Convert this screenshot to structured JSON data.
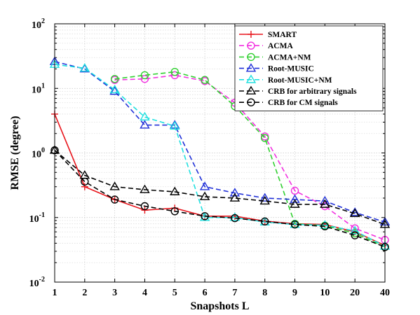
{
  "chart_data": {
    "type": "line",
    "title": "",
    "xlabel": "Snapshots L",
    "ylabel": "RMSE (degree)",
    "yscale": "log",
    "ylim": [
      0.01,
      100
    ],
    "grid": true,
    "legend_position": "top-right",
    "categories": [
      "1",
      "2",
      "3",
      "4",
      "5",
      "6",
      "7",
      "8",
      "9",
      "10",
      "20",
      "40"
    ],
    "y_ticks": [
      {
        "base": "10",
        "exp": "-2",
        "value": 0.01
      },
      {
        "base": "10",
        "exp": "-1",
        "value": 0.1
      },
      {
        "base": "10",
        "exp": "0",
        "value": 1
      },
      {
        "base": "10",
        "exp": "1",
        "value": 10
      },
      {
        "base": "10",
        "exp": "2",
        "value": 100
      }
    ],
    "series": [
      {
        "name": "SMART",
        "color": "#e8141b",
        "dash": "solid",
        "marker": "plus",
        "values": [
          4.0,
          0.3,
          0.19,
          0.13,
          0.14,
          0.105,
          0.105,
          0.088,
          0.08,
          0.078,
          0.06,
          0.037
        ]
      },
      {
        "name": "ACMA",
        "color": "#f230e0",
        "dash": "dashed",
        "marker": "circle",
        "values": [
          null,
          null,
          13.5,
          14.0,
          16.0,
          13.0,
          6.0,
          1.8,
          0.26,
          0.15,
          0.068,
          0.045
        ]
      },
      {
        "name": "ACMA+NM",
        "color": "#30d030",
        "dash": "dashed",
        "marker": "circle",
        "values": [
          null,
          null,
          14.0,
          16.0,
          18.0,
          13.5,
          5.3,
          1.7,
          0.08,
          0.075,
          0.057,
          0.035
        ]
      },
      {
        "name": "Root-MUSIC",
        "color": "#2030d8",
        "dash": "dashed",
        "marker": "triangle",
        "values": [
          26.0,
          20.0,
          9.0,
          2.7,
          2.7,
          0.3,
          0.24,
          0.2,
          0.19,
          0.18,
          0.12,
          0.085
        ]
      },
      {
        "name": "Root-MUSIC+NM",
        "color": "#20e0e0",
        "dash": "dashed",
        "marker": "triangle",
        "values": [
          23.5,
          20.5,
          9.5,
          3.6,
          2.6,
          0.1,
          0.1,
          0.085,
          0.078,
          0.076,
          0.062,
          0.036
        ]
      },
      {
        "name": "CRB for arbitrary signals",
        "color": "#000000",
        "dash": "dashed",
        "marker": "triangle",
        "values": [
          1.1,
          0.45,
          0.3,
          0.27,
          0.25,
          0.21,
          0.2,
          0.18,
          0.16,
          0.16,
          0.115,
          0.078
        ]
      },
      {
        "name": "CRB for CM signals",
        "color": "#000000",
        "dash": "dashed",
        "marker": "circle",
        "values": [
          1.1,
          0.36,
          0.19,
          0.15,
          0.125,
          0.105,
          0.098,
          0.087,
          0.078,
          0.073,
          0.053,
          0.035
        ]
      }
    ]
  }
}
